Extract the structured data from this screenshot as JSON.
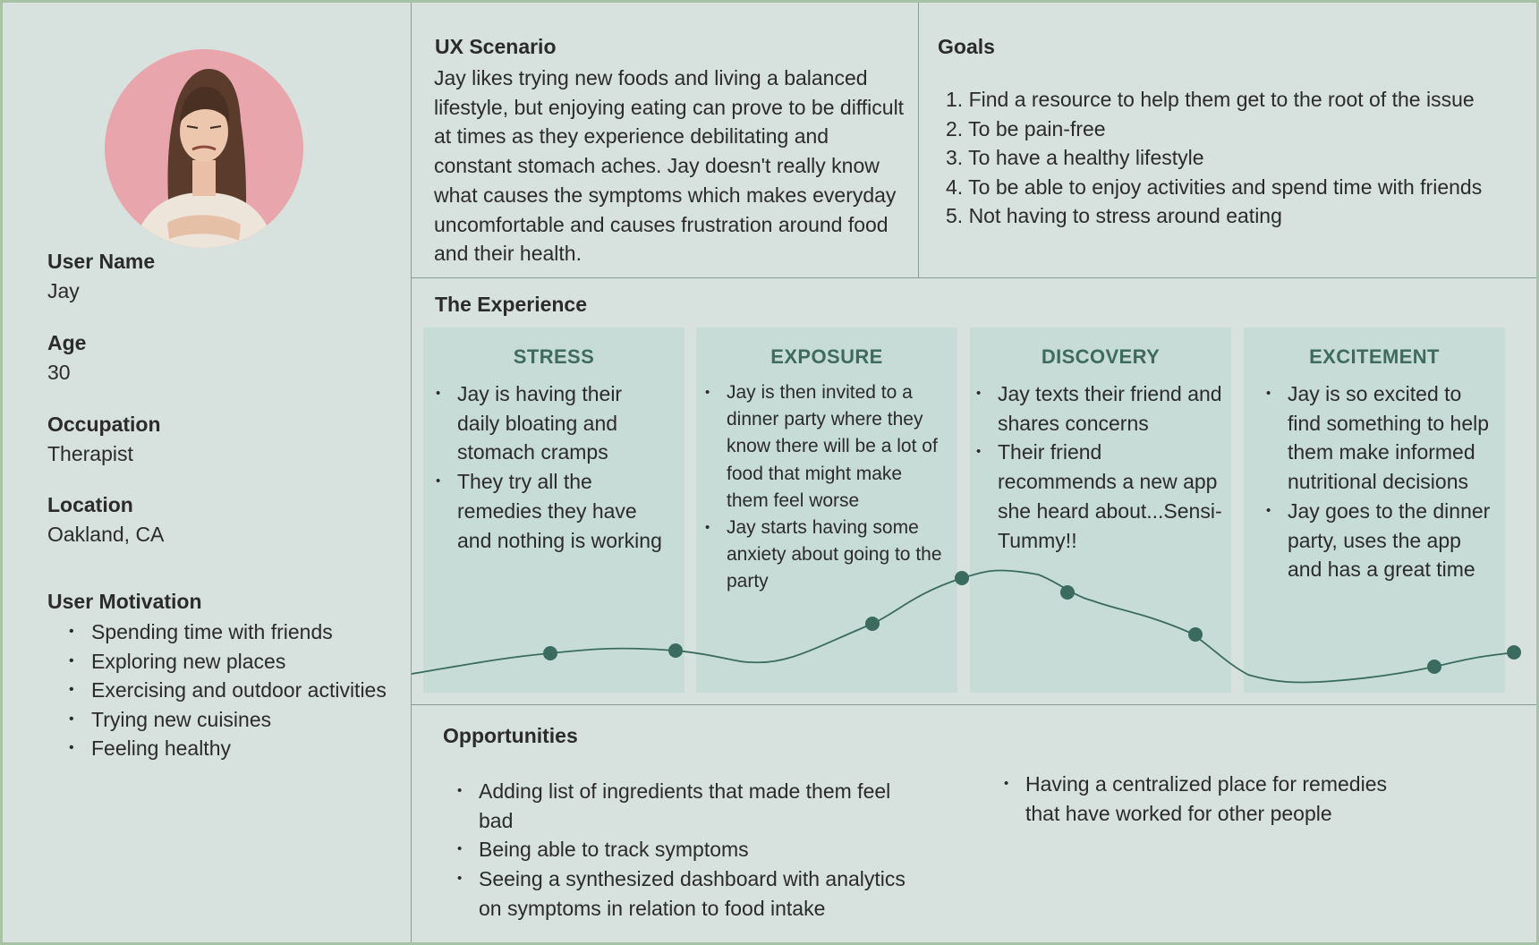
{
  "profile": {
    "user_name_label": "User Name",
    "user_name": "Jay",
    "age_label": "Age",
    "age": "30",
    "occupation_label": "Occupation",
    "occupation": "Therapist",
    "location_label": "Location",
    "location": "Oakland, CA",
    "motivation_label": "User Motivation",
    "motivations": [
      "Spending time with friends",
      "Exploring new places",
      "Exercising and outdoor activities",
      "Trying new cuisines",
      "Feeling healthy"
    ]
  },
  "scenario": {
    "title": "UX Scenario",
    "text": "Jay likes trying new foods and living a balanced lifestyle, but enjoying eating can prove to be difficult at times as they experience debilitating and constant stomach aches. Jay doesn't really know what causes the symptoms which makes everyday uncomfortable and causes frustration around food and their health."
  },
  "goals": {
    "title": "Goals",
    "items": [
      "1. Find a resource to help them get to the root of the issue",
      "2. To be pain-free",
      "3. To have a healthy lifestyle",
      "4. To be able to enjoy activities and spend time with friends",
      "5. Not having to stress around eating"
    ]
  },
  "experience": {
    "title": "The Experience",
    "stages": [
      {
        "title": "STRESS",
        "bullets": [
          "Jay is having their daily bloating and stomach cramps",
          "They try all the remedies they have and nothing is working"
        ]
      },
      {
        "title": "EXPOSURE",
        "bullets": [
          "Jay is then invited to a dinner party where they know there will be a lot of food that might make them feel worse",
          "Jay starts having some anxiety about going to the party"
        ]
      },
      {
        "title": "DISCOVERY",
        "bullets": [
          "Jay texts their friend and shares concerns",
          "Their friend recommends a new app she heard about...Sensi-Tummy!!"
        ]
      },
      {
        "title": "EXCITEMENT",
        "bullets": [
          "Jay is so excited to find something to help them make informed nutritional decisions",
          "Jay goes to the dinner party, uses the app and has a great time"
        ]
      }
    ],
    "colors": {
      "stage_bg": "#c8dcd7",
      "curve": "#3a6b5e",
      "stage_title": "#3f6b5f"
    }
  },
  "opportunities": {
    "title": "Opportunities",
    "left": [
      "Adding list of ingredients that made them feel bad",
      "Being able to track symptoms",
      "Seeing a synthesized dashboard with analytics on symptoms in relation to food intake"
    ],
    "right": [
      "Having a centralized place for remedies that have worked for other people"
    ]
  }
}
